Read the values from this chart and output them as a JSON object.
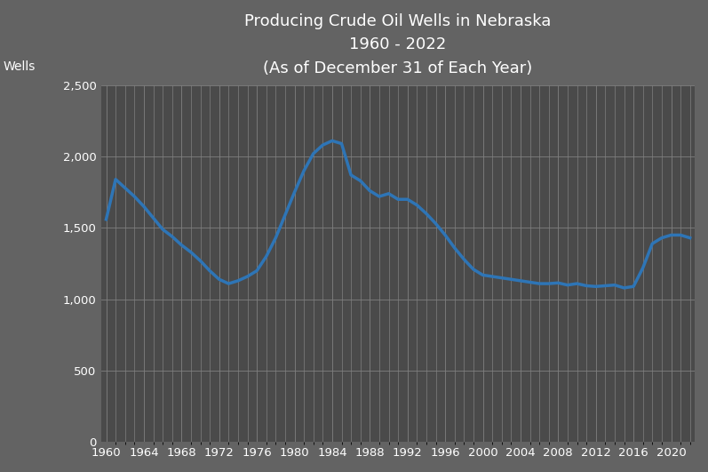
{
  "title_line1": "Producing Crude Oil Wells in Nebraska",
  "title_line2": "1960 - 2022",
  "title_line3": "(As of December 31 of Each Year)",
  "wells_label": "Wells",
  "background_color": "#636363",
  "plot_background_color": "#4a4a4a",
  "line_color": "#2e75b6",
  "line_width": 2.5,
  "title_color": "#ffffff",
  "label_color": "#ffffff",
  "tick_color": "#ffffff",
  "grid_color": "#808080",
  "years": [
    1960,
    1961,
    1962,
    1963,
    1964,
    1965,
    1966,
    1967,
    1968,
    1969,
    1970,
    1971,
    1972,
    1973,
    1974,
    1975,
    1976,
    1977,
    1978,
    1979,
    1980,
    1981,
    1982,
    1983,
    1984,
    1985,
    1986,
    1987,
    1988,
    1989,
    1990,
    1991,
    1992,
    1993,
    1994,
    1995,
    1996,
    1997,
    1998,
    1999,
    2000,
    2001,
    2002,
    2003,
    2004,
    2005,
    2006,
    2007,
    2008,
    2009,
    2010,
    2011,
    2012,
    2013,
    2014,
    2015,
    2016,
    2017,
    2018,
    2019,
    2020,
    2021,
    2022
  ],
  "values": [
    1560,
    1840,
    1780,
    1720,
    1650,
    1570,
    1490,
    1440,
    1380,
    1330,
    1270,
    1200,
    1140,
    1110,
    1130,
    1160,
    1200,
    1300,
    1430,
    1590,
    1750,
    1900,
    2020,
    2080,
    2110,
    2090,
    1870,
    1830,
    1760,
    1720,
    1740,
    1700,
    1700,
    1660,
    1600,
    1530,
    1450,
    1360,
    1280,
    1210,
    1170,
    1160,
    1150,
    1140,
    1130,
    1120,
    1110,
    1110,
    1115,
    1100,
    1110,
    1095,
    1090,
    1095,
    1100,
    1080,
    1090,
    1220,
    1390,
    1430,
    1450,
    1450,
    1430
  ],
  "ylim": [
    0,
    2500
  ],
  "yticks": [
    0,
    500,
    1000,
    1500,
    2000,
    2500
  ],
  "xtick_start": 1960,
  "xtick_end": 2022,
  "xtick_step": 4,
  "xlim_left": 1959.5,
  "xlim_right": 2022.5
}
